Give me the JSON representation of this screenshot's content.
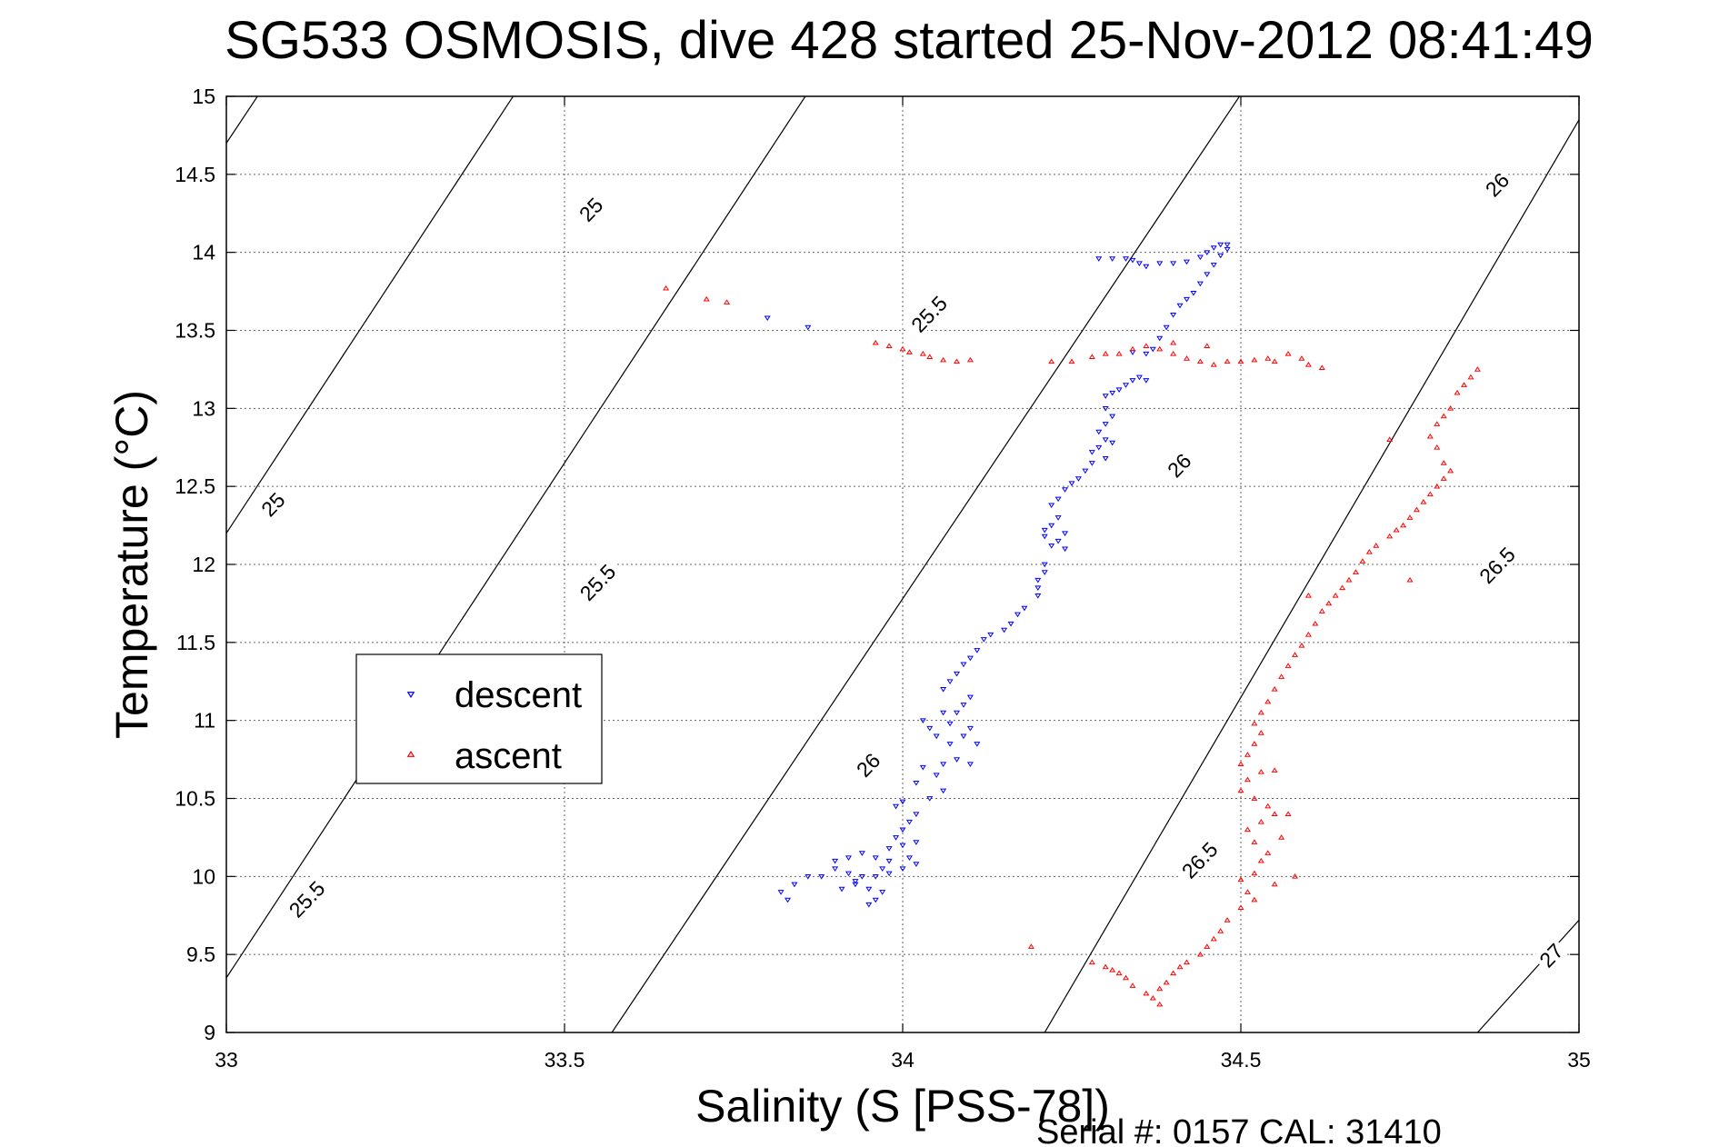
{
  "chart_data": {
    "type": "scatter",
    "title": "SG533 OSMOSIS, dive 428 started 25-Nov-2012 08:41:49",
    "xlabel": "Salinity (S [PSS-78])",
    "ylabel": "Temperature (°C)",
    "xlim": [
      33,
      35
    ],
    "ylim": [
      9,
      15
    ],
    "xticks": [
      "33",
      "33.5",
      "34",
      "34.5",
      "35"
    ],
    "yticks": [
      "9",
      "9.5",
      "10",
      "10.5",
      "11",
      "11.5",
      "12",
      "12.5",
      "13",
      "13.5",
      "14",
      "14.5",
      "15"
    ],
    "grid": true,
    "legend_position": "center-left",
    "footer": "Serial #: 0157  CAL: 31410",
    "density_contours": {
      "color": "#000000",
      "lines": [
        {
          "value": "25",
          "points": [
            [
              33,
              14.7
            ],
            [
              33.89,
              20.5
            ]
          ]
        },
        {
          "value": "25",
          "points": [
            [
              33,
              12.2
            ],
            [
              34.06,
              19.2
            ]
          ]
        },
        {
          "value": "25.5",
          "points": [
            [
              33,
              9.35
            ],
            [
              34.0,
              15.95
            ]
          ]
        },
        {
          "value": "25.5",
          "points": [
            [
              33.57,
              9
            ],
            [
              34.73,
              16.5
            ]
          ]
        },
        {
          "value": "26",
          "points": [
            [
              34.21,
              9
            ],
            [
              35.0,
              14.85
            ]
          ]
        },
        {
          "value": "26.5",
          "points": [
            [
              34.85,
              9
            ],
            [
              35.0,
              9.72
            ]
          ]
        }
      ],
      "labels": [
        {
          "text": "25",
          "x": 33.54,
          "y": 14.27
        },
        {
          "text": "25",
          "x": 33.07,
          "y": 12.38
        },
        {
          "text": "25.5",
          "x": 34.04,
          "y": 13.6
        },
        {
          "text": "25.5",
          "x": 33.55,
          "y": 11.88
        },
        {
          "text": "25.5",
          "x": 33.12,
          "y": 9.85
        },
        {
          "text": "26",
          "x": 34.88,
          "y": 14.43
        },
        {
          "text": "26",
          "x": 34.41,
          "y": 12.63
        },
        {
          "text": "26",
          "x": 33.95,
          "y": 10.71
        },
        {
          "text": "26.5",
          "x": 34.88,
          "y": 11.99
        },
        {
          "text": "26.5",
          "x": 34.44,
          "y": 10.1
        },
        {
          "text": "27",
          "x": 34.96,
          "y": 9.49
        }
      ]
    },
    "series": [
      {
        "name": "descent",
        "marker": "triangle-down",
        "color": "#0000ff",
        "points": [
          [
            33.8,
            13.58
          ],
          [
            33.86,
            13.52
          ],
          [
            34.29,
            13.96
          ],
          [
            34.31,
            13.96
          ],
          [
            34.33,
            13.96
          ],
          [
            34.34,
            13.95
          ],
          [
            34.35,
            13.93
          ],
          [
            34.36,
            13.91
          ],
          [
            34.38,
            13.93
          ],
          [
            34.4,
            13.93
          ],
          [
            34.42,
            13.94
          ],
          [
            34.44,
            13.97
          ],
          [
            34.45,
            14.0
          ],
          [
            34.46,
            14.03
          ],
          [
            34.47,
            14.05
          ],
          [
            34.48,
            14.05
          ],
          [
            34.48,
            14.02
          ],
          [
            34.47,
            13.98
          ],
          [
            34.46,
            13.92
          ],
          [
            34.45,
            13.86
          ],
          [
            34.44,
            13.8
          ],
          [
            34.43,
            13.74
          ],
          [
            34.42,
            13.7
          ],
          [
            34.41,
            13.66
          ],
          [
            34.4,
            13.6
          ],
          [
            34.39,
            13.52
          ],
          [
            34.38,
            13.45
          ],
          [
            34.37,
            13.38
          ],
          [
            34.36,
            13.35
          ],
          [
            34.34,
            13.36
          ],
          [
            34.35,
            13.2
          ],
          [
            34.36,
            13.18
          ],
          [
            34.34,
            13.18
          ],
          [
            34.33,
            13.15
          ],
          [
            34.32,
            13.12
          ],
          [
            34.31,
            13.1
          ],
          [
            34.3,
            13.08
          ],
          [
            34.3,
            13.0
          ],
          [
            34.31,
            12.95
          ],
          [
            34.3,
            12.9
          ],
          [
            34.29,
            12.85
          ],
          [
            34.3,
            12.8
          ],
          [
            34.31,
            12.78
          ],
          [
            34.29,
            12.75
          ],
          [
            34.28,
            12.72
          ],
          [
            34.3,
            12.68
          ],
          [
            34.28,
            12.65
          ],
          [
            34.27,
            12.6
          ],
          [
            34.26,
            12.55
          ],
          [
            34.25,
            12.52
          ],
          [
            34.24,
            12.48
          ],
          [
            34.23,
            12.42
          ],
          [
            34.22,
            12.38
          ],
          [
            34.23,
            12.3
          ],
          [
            34.22,
            12.25
          ],
          [
            34.21,
            12.22
          ],
          [
            34.24,
            12.2
          ],
          [
            34.23,
            12.15
          ],
          [
            34.22,
            12.12
          ],
          [
            34.24,
            12.1
          ],
          [
            34.21,
            12.18
          ],
          [
            34.21,
            12.0
          ],
          [
            34.21,
            11.95
          ],
          [
            34.2,
            11.9
          ],
          [
            34.2,
            11.85
          ],
          [
            34.2,
            11.8
          ],
          [
            34.18,
            11.72
          ],
          [
            34.17,
            11.68
          ],
          [
            34.16,
            11.62
          ],
          [
            34.15,
            11.58
          ],
          [
            34.13,
            11.55
          ],
          [
            34.12,
            11.52
          ],
          [
            34.11,
            11.45
          ],
          [
            34.1,
            11.4
          ],
          [
            34.09,
            11.36
          ],
          [
            34.08,
            11.3
          ],
          [
            34.07,
            11.25
          ],
          [
            34.06,
            11.2
          ],
          [
            34.1,
            11.15
          ],
          [
            34.09,
            11.1
          ],
          [
            34.08,
            11.05
          ],
          [
            34.1,
            10.95
          ],
          [
            34.09,
            10.9
          ],
          [
            34.11,
            10.85
          ],
          [
            34.07,
            10.85
          ],
          [
            34.05,
            10.9
          ],
          [
            34.04,
            10.95
          ],
          [
            34.03,
            11.0
          ],
          [
            34.06,
            11.05
          ],
          [
            34.07,
            10.98
          ],
          [
            34.08,
            10.75
          ],
          [
            34.1,
            10.72
          ],
          [
            34.06,
            10.72
          ],
          [
            34.03,
            10.7
          ],
          [
            34.05,
            10.65
          ],
          [
            34.02,
            10.6
          ],
          [
            34.06,
            10.55
          ],
          [
            34.04,
            10.5
          ],
          [
            34.0,
            10.48
          ],
          [
            33.99,
            10.45
          ],
          [
            34.02,
            10.4
          ],
          [
            34.01,
            10.35
          ],
          [
            34.0,
            10.3
          ],
          [
            33.99,
            10.25
          ],
          [
            34.02,
            10.22
          ],
          [
            34.0,
            10.2
          ],
          [
            33.98,
            10.18
          ],
          [
            34.01,
            10.12
          ],
          [
            34.02,
            10.08
          ],
          [
            34.0,
            10.05
          ],
          [
            33.98,
            10.02
          ],
          [
            33.96,
            10.0
          ],
          [
            33.94,
            10.0
          ],
          [
            33.93,
            9.95
          ],
          [
            33.95,
            9.92
          ],
          [
            33.97,
            9.9
          ],
          [
            33.96,
            9.85
          ],
          [
            33.95,
            9.82
          ],
          [
            33.92,
            10.02
          ],
          [
            33.9,
            10.05
          ],
          [
            33.88,
            10.0
          ],
          [
            33.86,
            10.0
          ],
          [
            33.84,
            9.95
          ],
          [
            33.82,
            9.9
          ],
          [
            33.83,
            9.85
          ],
          [
            33.9,
            10.1
          ],
          [
            33.92,
            10.12
          ],
          [
            33.94,
            10.15
          ],
          [
            33.96,
            10.12
          ],
          [
            33.98,
            10.1
          ],
          [
            33.97,
            10.05
          ],
          [
            33.93,
            9.97
          ],
          [
            33.91,
            9.92
          ]
        ]
      },
      {
        "name": "ascent",
        "marker": "triangle-up",
        "color": "#ff0000",
        "points": [
          [
            33.65,
            13.77
          ],
          [
            33.71,
            13.7
          ],
          [
            33.74,
            13.68
          ],
          [
            33.96,
            13.42
          ],
          [
            33.98,
            13.4
          ],
          [
            34.0,
            13.38
          ],
          [
            34.01,
            13.36
          ],
          [
            34.03,
            13.35
          ],
          [
            34.04,
            13.33
          ],
          [
            34.06,
            13.31
          ],
          [
            34.08,
            13.3
          ],
          [
            34.1,
            13.31
          ],
          [
            34.22,
            13.3
          ],
          [
            34.25,
            13.3
          ],
          [
            34.28,
            13.33
          ],
          [
            34.3,
            13.35
          ],
          [
            34.32,
            13.35
          ],
          [
            34.34,
            13.38
          ],
          [
            34.36,
            13.4
          ],
          [
            34.38,
            13.38
          ],
          [
            34.4,
            13.35
          ],
          [
            34.42,
            13.32
          ],
          [
            34.44,
            13.3
          ],
          [
            34.46,
            13.28
          ],
          [
            34.48,
            13.3
          ],
          [
            34.5,
            13.3
          ],
          [
            34.52,
            13.31
          ],
          [
            34.54,
            13.32
          ],
          [
            34.55,
            13.3
          ],
          [
            34.57,
            13.35
          ],
          [
            34.59,
            13.32
          ],
          [
            34.6,
            13.28
          ],
          [
            34.62,
            13.26
          ],
          [
            34.4,
            13.42
          ],
          [
            34.45,
            13.4
          ],
          [
            34.85,
            13.25
          ],
          [
            34.84,
            13.2
          ],
          [
            34.83,
            13.15
          ],
          [
            34.82,
            13.1
          ],
          [
            34.81,
            13.0
          ],
          [
            34.8,
            12.95
          ],
          [
            34.79,
            12.9
          ],
          [
            34.78,
            12.82
          ],
          [
            34.79,
            12.75
          ],
          [
            34.8,
            12.65
          ],
          [
            34.81,
            12.6
          ],
          [
            34.8,
            12.55
          ],
          [
            34.79,
            12.5
          ],
          [
            34.78,
            12.45
          ],
          [
            34.77,
            12.4
          ],
          [
            34.76,
            12.35
          ],
          [
            34.75,
            12.3
          ],
          [
            34.74,
            12.25
          ],
          [
            34.73,
            12.22
          ],
          [
            34.72,
            12.18
          ],
          [
            34.7,
            12.12
          ],
          [
            34.69,
            12.08
          ],
          [
            34.68,
            12.02
          ],
          [
            34.67,
            11.95
          ],
          [
            34.66,
            11.9
          ],
          [
            34.65,
            11.85
          ],
          [
            34.64,
            11.8
          ],
          [
            34.63,
            11.75
          ],
          [
            34.62,
            11.7
          ],
          [
            34.61,
            11.62
          ],
          [
            34.6,
            11.55
          ],
          [
            34.59,
            11.48
          ],
          [
            34.58,
            11.42
          ],
          [
            34.57,
            11.35
          ],
          [
            34.56,
            11.28
          ],
          [
            34.55,
            11.2
          ],
          [
            34.54,
            11.12
          ],
          [
            34.53,
            11.05
          ],
          [
            34.52,
            10.98
          ],
          [
            34.53,
            10.92
          ],
          [
            34.52,
            10.85
          ],
          [
            34.51,
            10.78
          ],
          [
            34.5,
            10.72
          ],
          [
            34.53,
            10.67
          ],
          [
            34.55,
            10.68
          ],
          [
            34.51,
            10.62
          ],
          [
            34.5,
            10.55
          ],
          [
            34.52,
            10.5
          ],
          [
            34.54,
            10.45
          ],
          [
            34.55,
            10.4
          ],
          [
            34.53,
            10.35
          ],
          [
            34.51,
            10.3
          ],
          [
            34.52,
            10.22
          ],
          [
            34.54,
            10.15
          ],
          [
            34.53,
            10.1
          ],
          [
            34.52,
            10.02
          ],
          [
            34.5,
            9.98
          ],
          [
            34.51,
            9.9
          ],
          [
            34.52,
            9.85
          ],
          [
            34.5,
            9.8
          ],
          [
            34.48,
            9.72
          ],
          [
            34.47,
            9.65
          ],
          [
            34.46,
            9.6
          ],
          [
            34.45,
            9.55
          ],
          [
            34.44,
            9.5
          ],
          [
            34.42,
            9.45
          ],
          [
            34.41,
            9.42
          ],
          [
            34.4,
            9.38
          ],
          [
            34.39,
            9.32
          ],
          [
            34.38,
            9.28
          ],
          [
            34.37,
            9.22
          ],
          [
            34.38,
            9.18
          ],
          [
            34.36,
            9.25
          ],
          [
            34.34,
            9.3
          ],
          [
            34.33,
            9.35
          ],
          [
            34.32,
            9.38
          ],
          [
            34.31,
            9.4
          ],
          [
            34.3,
            9.42
          ],
          [
            34.28,
            9.45
          ],
          [
            34.58,
            10.0
          ],
          [
            34.55,
            9.95
          ],
          [
            34.56,
            10.25
          ],
          [
            34.57,
            10.4
          ],
          [
            34.6,
            11.8
          ],
          [
            34.72,
            12.8
          ],
          [
            34.75,
            11.9
          ],
          [
            34.19,
            9.55
          ]
        ]
      }
    ]
  }
}
